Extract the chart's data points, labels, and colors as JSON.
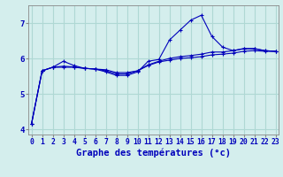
{
  "xlabel": "Graphe des températures (°c)",
  "background_color": "#d4eeed",
  "grid_color": "#afd8d4",
  "line_color": "#0000bb",
  "hours": [
    0,
    1,
    2,
    3,
    4,
    5,
    6,
    7,
    8,
    9,
    10,
    11,
    12,
    13,
    14,
    15,
    16,
    17,
    18,
    19,
    20,
    21,
    22,
    23
  ],
  "line1": [
    4.15,
    5.65,
    5.75,
    5.75,
    5.75,
    5.72,
    5.7,
    5.68,
    5.6,
    5.6,
    5.65,
    5.8,
    5.9,
    5.95,
    6.0,
    6.02,
    6.05,
    6.1,
    6.12,
    6.15,
    6.2,
    6.22,
    6.2,
    6.2
  ],
  "line2": [
    4.15,
    5.65,
    5.75,
    5.92,
    5.8,
    5.72,
    5.7,
    5.62,
    5.52,
    5.52,
    5.62,
    5.92,
    5.97,
    6.52,
    6.8,
    7.08,
    7.22,
    6.62,
    6.32,
    6.22,
    6.28,
    6.28,
    6.22,
    6.2
  ],
  "line3": [
    4.15,
    5.65,
    5.75,
    5.78,
    5.76,
    5.72,
    5.7,
    5.65,
    5.56,
    5.56,
    5.65,
    5.82,
    5.92,
    6.0,
    6.05,
    6.08,
    6.12,
    6.18,
    6.18,
    6.22,
    6.27,
    6.27,
    6.22,
    6.2
  ],
  "ylim": [
    3.85,
    7.5
  ],
  "yticks": [
    4,
    5,
    6,
    7
  ],
  "xticks": [
    0,
    1,
    2,
    3,
    4,
    5,
    6,
    7,
    8,
    9,
    10,
    11,
    12,
    13,
    14,
    15,
    16,
    17,
    18,
    19,
    20,
    21,
    22,
    23
  ],
  "tick_fontsize": 5.8,
  "ylabel_fontsize": 6.5,
  "xlabel_fontsize": 7.5
}
